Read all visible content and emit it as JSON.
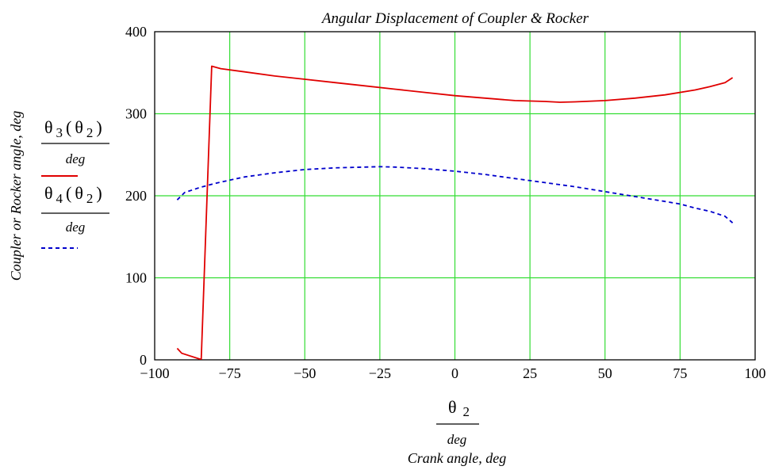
{
  "chart_data": {
    "type": "line",
    "title": "Angular Displacement of Coupler & Rocker",
    "ylabel": "Coupler or Rocker angle, deg",
    "xlabel": {
      "numerator_symbol": "θ",
      "numerator_subscript": "2",
      "denominator": "deg",
      "caption": "Crank angle, deg"
    },
    "xlim": [
      -100,
      100
    ],
    "ylim": [
      0,
      400
    ],
    "x_ticks": [
      -100,
      -75,
      -50,
      -25,
      0,
      25,
      50,
      75,
      100
    ],
    "x_tick_labels": [
      "−100",
      "−75",
      "−50",
      "−25",
      "0",
      "25",
      "50",
      "75",
      "100"
    ],
    "y_ticks": [
      0,
      100,
      200,
      300,
      400
    ],
    "y_tick_labels": [
      "0",
      "100",
      "200",
      "300",
      "400"
    ],
    "grid": true,
    "grid_color": "#33dd33",
    "legend_placement": "left",
    "series": [
      {
        "legend": {
          "symbol": "θ",
          "sub1": "3",
          "arg_symbol": "θ",
          "sub2": "2",
          "denominator": "deg"
        },
        "color": "#e00000",
        "dash": "solid",
        "x": [
          -92.5,
          -91,
          -85,
          -84.5,
          -81,
          -78,
          -70,
          -60,
          -50,
          -40,
          -30,
          -20,
          -10,
          0,
          10,
          20,
          30,
          35,
          40,
          50,
          60,
          70,
          80,
          85,
          90,
          92.5
        ],
        "y": [
          14,
          8,
          1,
          1,
          358,
          355,
          351,
          346,
          342,
          338,
          334,
          330,
          326,
          322,
          319,
          316,
          315,
          314,
          314.5,
          316,
          319,
          323,
          329,
          333,
          338,
          344
        ]
      },
      {
        "legend": {
          "symbol": "θ",
          "sub1": "4",
          "arg_symbol": "θ",
          "sub2": "2",
          "denominator": "deg"
        },
        "color": "#0000cc",
        "dash": "dashed",
        "x": [
          -92.5,
          -90,
          -85,
          -80,
          -75,
          -70,
          -60,
          -50,
          -40,
          -30,
          -25,
          -20,
          -10,
          0,
          10,
          20,
          30,
          40,
          50,
          60,
          70,
          75,
          80,
          85,
          90,
          92.5
        ],
        "y": [
          195,
          204,
          210,
          215,
          219,
          223,
          228,
          232,
          234,
          235,
          235.5,
          235,
          233,
          230,
          226,
          221,
          216,
          211,
          205,
          199,
          193,
          190,
          185,
          181,
          175,
          167
        ]
      }
    ]
  }
}
